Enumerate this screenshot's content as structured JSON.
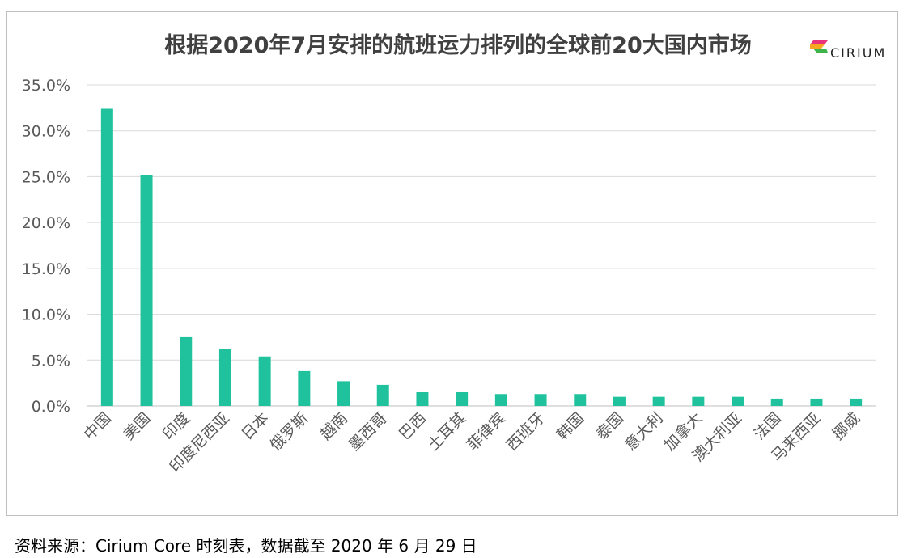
{
  "chart_data": {
    "type": "bar",
    "title": "根据2020年7月安排的航班运力排列的全球前20大国内市场",
    "categories": [
      "中国",
      "美国",
      "印度",
      "印度尼西亚",
      "日本",
      "俄罗斯",
      "越南",
      "墨西哥",
      "巴西",
      "土耳其",
      "菲律宾",
      "西班牙",
      "韩国",
      "泰国",
      "意大利",
      "加拿大",
      "澳大利亚",
      "法国",
      "马来西亚",
      "挪威"
    ],
    "values": [
      32.4,
      25.2,
      7.5,
      6.2,
      5.4,
      3.8,
      2.7,
      2.3,
      1.5,
      1.5,
      1.3,
      1.3,
      1.3,
      1.0,
      1.0,
      1.0,
      1.0,
      0.8,
      0.8,
      0.8
    ],
    "ylim": [
      0,
      35
    ],
    "yticks": [
      "0.0%",
      "5.0%",
      "10.0%",
      "15.0%",
      "20.0%",
      "25.0%",
      "30.0%",
      "35.0%"
    ],
    "xlabel": "",
    "ylabel": "",
    "grid": true,
    "bar_color": "#20c29e"
  },
  "logo": {
    "text": "CIRIUM"
  },
  "source_note": "资料来源：Cirium Core 时刻表，数据截至 2020 年 6 月 29 日"
}
